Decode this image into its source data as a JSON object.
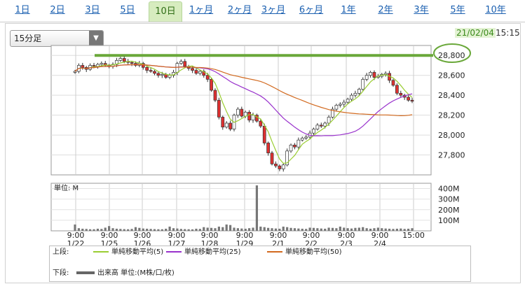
{
  "tabs": [
    "1日",
    "2日",
    "3日",
    "5日",
    "10日",
    "1ヶ月",
    "2ヶ月",
    "3ヶ月",
    "6ヶ月",
    "1年",
    "2年",
    "3年",
    "5年",
    "10年"
  ],
  "active_tab": "10日",
  "interval_select": "15分足",
  "timestamp": {
    "date": "21/02/04",
    "time": "15:15"
  },
  "colors": {
    "ma5": "#9acd32",
    "ma25": "#9932cc",
    "ma50": "#d2691e",
    "candle_up": "#ffffff",
    "candle_down": "#e03030",
    "volume": "#777777",
    "highlight": "#6aa83a"
  },
  "chart_data": [
    {
      "type": "candlestick",
      "title": "",
      "ylim": [
        27600,
        28900
      ],
      "y_ticks": [
        "28,800",
        "28,600",
        "28,400",
        "28,200",
        "28,000",
        "27,800"
      ],
      "x_tick_times": [
        "9:00",
        "9:00",
        "9:00",
        "9:00",
        "9:00",
        "9:00",
        "9:00",
        "9:00",
        "9:00",
        "9:00",
        "15:00"
      ],
      "x_tick_dates": [
        "1/22",
        "1/25",
        "1/26",
        "1/27",
        "1/28",
        "1/29",
        "2/1",
        "2/2",
        "2/3",
        "2/4",
        ""
      ],
      "highlight_level": 28800,
      "close": [
        28640,
        28700,
        28680,
        28660,
        28700,
        28690,
        28710,
        28720,
        28700,
        28690,
        28710,
        28750,
        28770,
        28740,
        28730,
        28720,
        28700,
        28720,
        28680,
        28650,
        28640,
        28620,
        28600,
        28610,
        28580,
        28600,
        28630,
        28720,
        28740,
        28690,
        28670,
        28650,
        28620,
        28640,
        28600,
        28560,
        28450,
        28350,
        28180,
        28080,
        28120,
        28060,
        28200,
        28260,
        28190,
        28230,
        28150,
        28200,
        28140,
        28090,
        27920,
        27820,
        27710,
        27690,
        27660,
        27700,
        27840,
        27900,
        27880,
        27950,
        27970,
        27980,
        28020,
        28060,
        28100,
        28090,
        28120,
        28180,
        28260,
        28300,
        28310,
        28330,
        28360,
        28400,
        28420,
        28460,
        28560,
        28600,
        28630,
        28580,
        28590,
        28610,
        28620,
        28550,
        28500,
        28420,
        28400,
        28380,
        28350,
        28340
      ],
      "series": [
        {
          "name": "単純移動平均(5)",
          "color": "#9acd32"
        },
        {
          "name": "単純移動平均(25)",
          "color": "#9932cc"
        },
        {
          "name": "単純移動平均(50)",
          "color": "#d2691e"
        }
      ]
    },
    {
      "type": "bar",
      "title": "",
      "unit_label": "単位: M",
      "ylim": [
        0,
        450
      ],
      "y_ticks": [
        "400M",
        "300M",
        "200M",
        "100M"
      ],
      "values": [
        60,
        25,
        20,
        18,
        15,
        15,
        20,
        18,
        30,
        45,
        25,
        20,
        18,
        16,
        15,
        18,
        35,
        28,
        22,
        20,
        18,
        16,
        15,
        15,
        20,
        40,
        25,
        22,
        18,
        16,
        15,
        14,
        20,
        18,
        35,
        30,
        28,
        25,
        40,
        35,
        60,
        55,
        30,
        25,
        22,
        20,
        25,
        30,
        430,
        40,
        35,
        28,
        25,
        22,
        20,
        40,
        35,
        28,
        25,
        22,
        20,
        18,
        30,
        28,
        25,
        22,
        20,
        30,
        28,
        25,
        40,
        30,
        25,
        22,
        28,
        30,
        35,
        25,
        20,
        25,
        30,
        25,
        22,
        20,
        18,
        20,
        22,
        18,
        20,
        25
      ]
    }
  ],
  "legend": {
    "upper_label": "上段:",
    "lower_label": "下段:",
    "ma5": "単純移動平均(5)",
    "ma25": "単純移動平均(25)",
    "ma50": "単純移動平均(50)",
    "volume": "出来高 単位:(M株/口/枚)"
  }
}
